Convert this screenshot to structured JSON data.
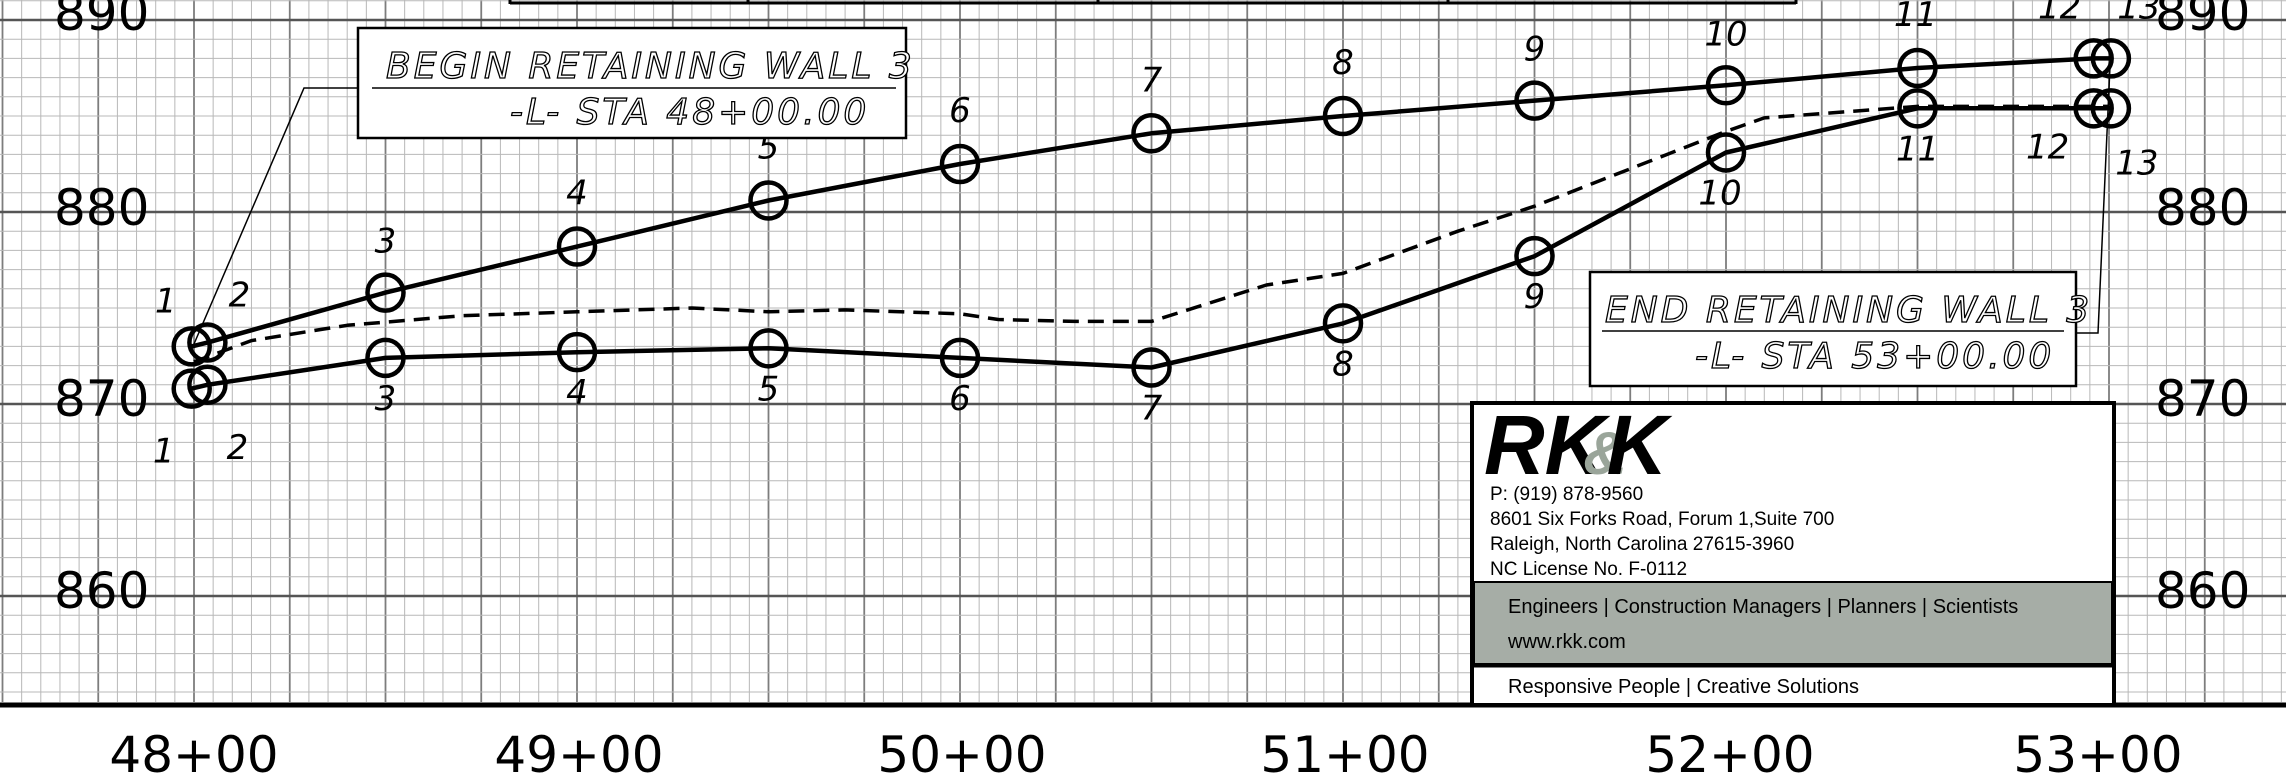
{
  "chart_data": {
    "type": "line",
    "title": "",
    "xlabel": "",
    "ylabel": "",
    "y_ticks_left": [
      "890",
      "880",
      "870",
      "860"
    ],
    "y_ticks_right": [
      "890",
      "880",
      "870",
      "860"
    ],
    "x_ticks": [
      "48+00",
      "49+00",
      "50+00",
      "51+00",
      "52+00",
      "53+00"
    ],
    "xlim": [
      4800,
      5300
    ],
    "ylim": [
      856,
      890.8
    ],
    "grid": true,
    "series": [
      {
        "style": "solid",
        "point_labels": [
          "1",
          "2",
          "3",
          "4",
          "5",
          "6",
          "7",
          "8",
          "9",
          "10",
          "11",
          "12",
          "13"
        ],
        "x": [
          4799.4,
          4803.5,
          4850,
          4900,
          4950,
          5000,
          5050,
          5100,
          5150,
          5200,
          5250,
          5296,
          5300.5
        ],
        "y": [
          873.0,
          873.2,
          875.8,
          878.2,
          880.6,
          882.5,
          884.1,
          885.0,
          885.8,
          886.6,
          887.5,
          888.0,
          888.0
        ]
      },
      {
        "style": "dashed",
        "x": [
          4800,
          4815,
          4840,
          4870,
          4900,
          4930,
          4950,
          4970,
          5000,
          5010,
          5030,
          5050,
          5080,
          5100,
          5130,
          5150,
          5200,
          5210,
          5250,
          5300
        ],
        "y": [
          872.2,
          873.3,
          874.1,
          874.6,
          874.8,
          875.0,
          874.8,
          874.9,
          874.7,
          874.4,
          874.3,
          874.3,
          876.2,
          876.8,
          879.0,
          880.3,
          884.2,
          884.9,
          885.5,
          885.5
        ]
      },
      {
        "style": "solid",
        "point_labels": [
          "1",
          "2",
          "3",
          "4",
          "5",
          "6",
          "7",
          "8",
          "9",
          "10",
          "11",
          "12",
          "13"
        ],
        "x": [
          4799.4,
          4803.5,
          4850,
          4900,
          4950,
          5000,
          5050,
          5100,
          5150,
          5200,
          5250,
          5296,
          5300.5
        ],
        "y": [
          870.8,
          871.0,
          872.4,
          872.7,
          872.9,
          872.4,
          871.9,
          874.2,
          877.7,
          883.1,
          885.4,
          885.4,
          885.4
        ]
      }
    ],
    "annotations": [
      {
        "line1": "BEGIN RETAINING WALL 3",
        "line2": "-L- STA 48+00.00"
      },
      {
        "line1": "END RETAINING WALL 3",
        "line2": "-L- STA 53+00.00"
      }
    ]
  },
  "title_block": {
    "logo_part1": "RK",
    "logo_amp": "&",
    "logo_part2": "K",
    "phone": "P: (919) 878-9560",
    "address1": "8601 Six Forks Road, Forum 1,Suite 700",
    "address2": "Raleigh, North Carolina 27615-3960",
    "license": "NC License No. F-0112",
    "services": "Engineers | Construction Managers | Planners | Scientists",
    "website": "www.rkk.com",
    "slogan": "Responsive People | Creative Solutions",
    "band_color": "#a6ada6"
  }
}
